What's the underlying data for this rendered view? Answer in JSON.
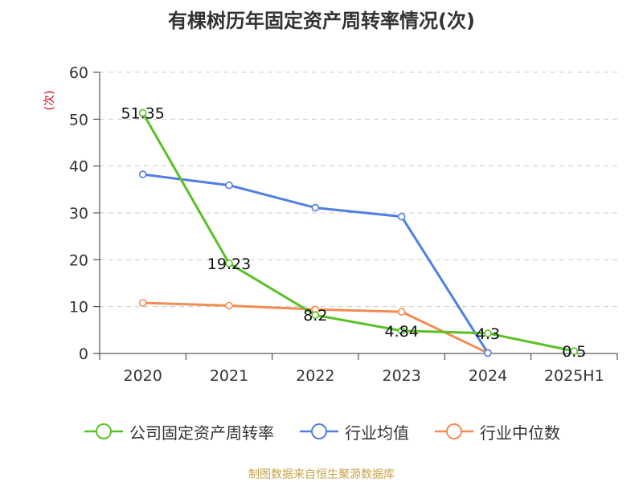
{
  "title": "有棵树历年固定资产周转率情况(次)",
  "source": "制图数据来自恒生聚源数据库",
  "chart_data": {
    "type": "line",
    "title": "有棵树历年固定资产周转率情况(次)",
    "ylabel": "(次)",
    "ylim": [
      0,
      60
    ],
    "yticks": [
      0,
      10,
      20,
      30,
      40,
      50,
      60
    ],
    "grid": true,
    "legend_position": "bottom",
    "categories": [
      "2020",
      "2021",
      "2022",
      "2023",
      "2024",
      "2025H1"
    ],
    "series": [
      {
        "name": "公司固定资产周转率",
        "color": "#5ac026",
        "values": [
          51.35,
          19.23,
          8.2,
          4.84,
          4.3,
          0.5
        ],
        "labels": [
          "51.35",
          "19.23",
          "8.2",
          "4.84",
          "4.3",
          "0.5"
        ]
      },
      {
        "name": "行业均值",
        "color": "#4f7fe0",
        "values": [
          38.2,
          35.9,
          31.1,
          29.2,
          0.1,
          null
        ]
      },
      {
        "name": "行业中位数",
        "color": "#f28c55",
        "values": [
          10.8,
          10.2,
          9.4,
          8.9,
          0.1,
          null
        ]
      }
    ]
  }
}
